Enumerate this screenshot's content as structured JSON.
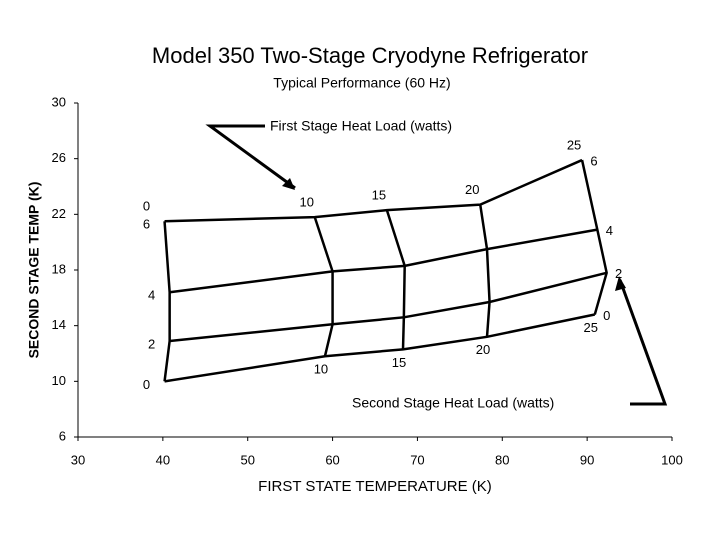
{
  "chart_data": {
    "type": "performance_map",
    "title": "Model 350 Two-Stage Cryodyne Refrigerator",
    "subtitle": "Typical Performance (60 Hz)",
    "x_label": "FIRST STATE TEMPERATURE (K)",
    "y_label": "SECOND STAGE TEMP (K)",
    "first_stage_annotation": "First Stage Heat Load (watts)",
    "second_stage_annotation": "Second Stage Heat Load (watts)",
    "first_stage_loads": [
      0,
      10,
      15,
      20,
      25
    ],
    "second_stage_loads": [
      0,
      2,
      4,
      6
    ],
    "first_stage_temp": [
      [
        40.2,
        59.1,
        68.3,
        78.2,
        90.9
      ],
      [
        40.8,
        60.0,
        68.4,
        78.5,
        92.3
      ],
      [
        40.8,
        60.0,
        68.5,
        78.2,
        91.2
      ],
      [
        40.2,
        57.9,
        66.4,
        77.4,
        89.4
      ]
    ],
    "second_stage_temp": [
      [
        10.0,
        11.8,
        12.3,
        13.2,
        14.8
      ],
      [
        12.9,
        14.1,
        14.6,
        15.7,
        17.8
      ],
      [
        16.4,
        17.9,
        18.3,
        19.5,
        20.9
      ],
      [
        21.5,
        21.8,
        22.3,
        22.7,
        25.9
      ]
    ],
    "color": "#000000",
    "xlim": [
      30,
      100
    ],
    "xticks": [
      30,
      40,
      50,
      60,
      70,
      80,
      90,
      100
    ],
    "ylim": [
      6,
      30
    ],
    "yticks": [
      6,
      10,
      14,
      18,
      22,
      26,
      30
    ]
  }
}
